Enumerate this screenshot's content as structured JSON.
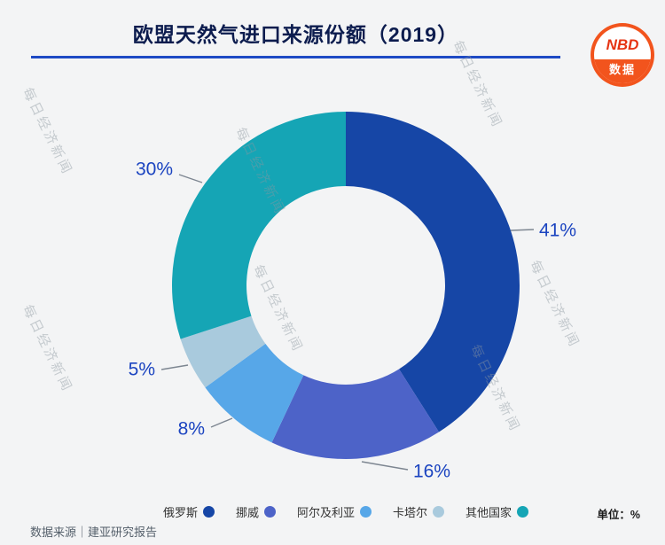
{
  "page": {
    "background": "#f3f4f5"
  },
  "header": {
    "title": "欧盟天然气进口来源份额（2019）",
    "divider_color": "#1e4ac4",
    "logo": {
      "top": "NBD",
      "bottom": "数据"
    }
  },
  "watermark": {
    "text": "每日经济新闻"
  },
  "chart_data": {
    "type": "pie",
    "donut": true,
    "title": "欧盟天然气进口来源份额（2019）",
    "categories": [
      "俄罗斯",
      "挪威",
      "阿尔及利亚",
      "卡塔尔",
      "其他国家"
    ],
    "values": [
      41,
      16,
      8,
      5,
      30
    ],
    "labels": [
      "41%",
      "16%",
      "8%",
      "5%",
      "30%"
    ],
    "colors": [
      "#1646a6",
      "#4d63c8",
      "#57a7e8",
      "#a9cadd",
      "#15a5b5"
    ],
    "label_color": "#1b44c0",
    "start_angle_deg": 0,
    "direction": "clockwise",
    "unit": "单位：%",
    "legend_position": "bottom"
  },
  "footer": {
    "source": "数据来源｜建亚研究报告"
  }
}
